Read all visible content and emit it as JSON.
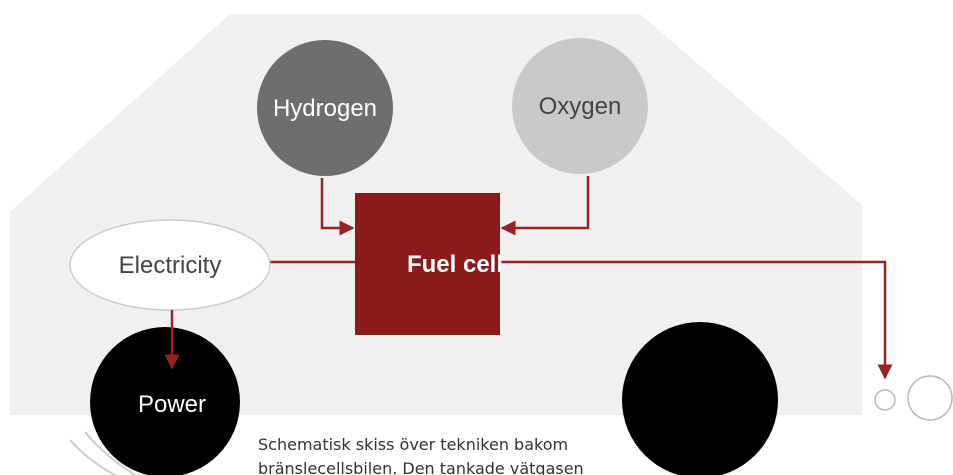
{
  "nodes": [
    {
      "label": "Hydrogen"
    },
    {
      "label": "Oxygen"
    },
    {
      "label": "Fuel cell"
    },
    {
      "label": "Electricity"
    },
    {
      "label": "Power"
    }
  ],
  "caption": [
    "Schematisk skiss över tekniken bakom",
    "bränslecellsbilen. Den tankade vätgasen"
  ]
}
